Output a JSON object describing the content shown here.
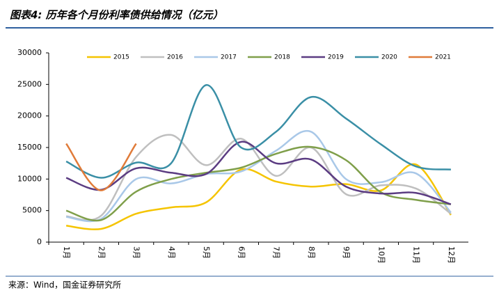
{
  "chart_data": {
    "type": "line",
    "title": "图表4: 历年各个月份利率债供给情况（亿元）",
    "source": "来源：Wind，国金证券研究所",
    "categories": [
      "1月",
      "2月",
      "3月",
      "4月",
      "5月",
      "6月",
      "7月",
      "8月",
      "9月",
      "10月",
      "11月",
      "12月"
    ],
    "series": [
      {
        "name": "2015",
        "color": "#f5c400",
        "values": [
          2600,
          2100,
          4500,
          5500,
          6300,
          11500,
          9600,
          8800,
          9200,
          8200,
          12300,
          4300
        ]
      },
      {
        "name": "2016",
        "color": "#bfbfbf",
        "values": [
          4100,
          4200,
          13500,
          17000,
          12200,
          16400,
          10500,
          15000,
          7600,
          9000,
          8500,
          4500
        ]
      },
      {
        "name": "2017",
        "color": "#a9c8e8",
        "values": [
          4000,
          3700,
          10000,
          9300,
          10800,
          11200,
          14500,
          17500,
          10000,
          9500,
          10900,
          4700
        ]
      },
      {
        "name": "2018",
        "color": "#7f9f4a",
        "values": [
          5000,
          3500,
          8000,
          10000,
          11000,
          11800,
          14000,
          15100,
          13000,
          7900,
          6700,
          6000
        ]
      },
      {
        "name": "2019",
        "color": "#5b3c82",
        "values": [
          10200,
          8300,
          11700,
          11000,
          10800,
          15900,
          12500,
          13100,
          8800,
          7700,
          7800,
          6000
        ]
      },
      {
        "name": "2020",
        "color": "#3a8fa6",
        "values": [
          12800,
          10200,
          12600,
          12500,
          24900,
          15000,
          17500,
          23000,
          19600,
          15500,
          12000,
          11500
        ]
      },
      {
        "name": "2021",
        "color": "#e07b39",
        "values": [
          15600,
          8200,
          15600,
          null,
          null,
          null,
          null,
          null,
          null,
          null,
          null,
          null
        ]
      }
    ],
    "ylim": [
      0,
      30000
    ],
    "yticks": [
      0,
      5000,
      10000,
      15000,
      20000,
      25000,
      30000
    ],
    "grid": false
  }
}
